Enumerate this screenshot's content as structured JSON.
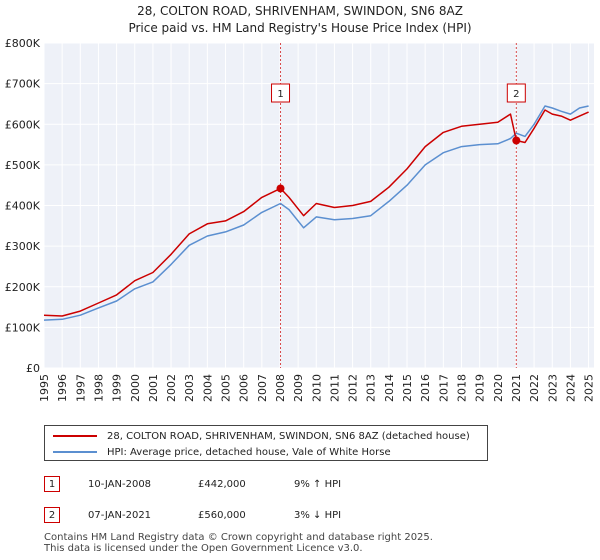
{
  "chart_data": {
    "type": "line",
    "title": "28, COLTON ROAD, SHRIVENHAM, SWINDON, SN6 8AZ",
    "subtitle": "Price paid vs. HM Land Registry's House Price Index (HPI)",
    "xlim": [
      1995,
      2025.3
    ],
    "ylim": [
      0,
      800000
    ],
    "x_ticks": [
      "1995",
      "1996",
      "1997",
      "1998",
      "1999",
      "2000",
      "2001",
      "2002",
      "2003",
      "2004",
      "2005",
      "2006",
      "2007",
      "2008",
      "2009",
      "2010",
      "2011",
      "2012",
      "2013",
      "2014",
      "2015",
      "2016",
      "2017",
      "2018",
      "2019",
      "2020",
      "2021",
      "2022",
      "2023",
      "2024",
      "2025"
    ],
    "y_ticks": [
      {
        "value": 0,
        "label": "£0"
      },
      {
        "value": 100000,
        "label": "£100K"
      },
      {
        "value": 200000,
        "label": "£200K"
      },
      {
        "value": 300000,
        "label": "£300K"
      },
      {
        "value": 400000,
        "label": "£400K"
      },
      {
        "value": 500000,
        "label": "£500K"
      },
      {
        "value": 600000,
        "label": "£600K"
      },
      {
        "value": 700000,
        "label": "£700K"
      },
      {
        "value": 800000,
        "label": "£800K"
      }
    ],
    "grid": true,
    "series": [
      {
        "name": "28, COLTON ROAD, SHRIVENHAM, SWINDON, SN6 8AZ (detached house)",
        "color": "#cc0000",
        "points": [
          [
            1995.0,
            130000
          ],
          [
            1996.0,
            128000
          ],
          [
            1997.0,
            140000
          ],
          [
            1998.0,
            160000
          ],
          [
            1999.0,
            180000
          ],
          [
            2000.0,
            215000
          ],
          [
            2001.0,
            235000
          ],
          [
            2002.0,
            280000
          ],
          [
            2003.0,
            330000
          ],
          [
            2004.0,
            355000
          ],
          [
            2005.0,
            362000
          ],
          [
            2006.0,
            385000
          ],
          [
            2007.0,
            420000
          ],
          [
            2008.03,
            442000
          ],
          [
            2008.5,
            420000
          ],
          [
            2009.3,
            375000
          ],
          [
            2010.0,
            405000
          ],
          [
            2011.0,
            395000
          ],
          [
            2012.0,
            400000
          ],
          [
            2013.0,
            410000
          ],
          [
            2014.0,
            445000
          ],
          [
            2015.0,
            490000
          ],
          [
            2016.0,
            545000
          ],
          [
            2017.0,
            580000
          ],
          [
            2018.0,
            595000
          ],
          [
            2019.0,
            600000
          ],
          [
            2020.0,
            605000
          ],
          [
            2020.7,
            625000
          ],
          [
            2021.02,
            560000
          ],
          [
            2021.5,
            555000
          ],
          [
            2022.0,
            590000
          ],
          [
            2022.6,
            635000
          ],
          [
            2023.0,
            625000
          ],
          [
            2023.5,
            620000
          ],
          [
            2024.0,
            610000
          ],
          [
            2024.5,
            620000
          ],
          [
            2025.0,
            630000
          ]
        ]
      },
      {
        "name": "HPI: Average price, detached house, Vale of White Horse",
        "color": "#5b8fd0",
        "points": [
          [
            1995.0,
            118000
          ],
          [
            1996.0,
            120000
          ],
          [
            1997.0,
            130000
          ],
          [
            1998.0,
            148000
          ],
          [
            1999.0,
            165000
          ],
          [
            2000.0,
            195000
          ],
          [
            2001.0,
            212000
          ],
          [
            2002.0,
            255000
          ],
          [
            2003.0,
            302000
          ],
          [
            2004.0,
            325000
          ],
          [
            2005.0,
            335000
          ],
          [
            2006.0,
            352000
          ],
          [
            2007.0,
            383000
          ],
          [
            2008.03,
            405000
          ],
          [
            2008.5,
            390000
          ],
          [
            2009.3,
            345000
          ],
          [
            2010.0,
            372000
          ],
          [
            2011.0,
            365000
          ],
          [
            2012.0,
            368000
          ],
          [
            2013.0,
            375000
          ],
          [
            2014.0,
            410000
          ],
          [
            2015.0,
            450000
          ],
          [
            2016.0,
            500000
          ],
          [
            2017.0,
            530000
          ],
          [
            2018.0,
            545000
          ],
          [
            2019.0,
            550000
          ],
          [
            2020.0,
            552000
          ],
          [
            2020.7,
            565000
          ],
          [
            2021.02,
            578000
          ],
          [
            2021.5,
            570000
          ],
          [
            2022.0,
            600000
          ],
          [
            2022.6,
            645000
          ],
          [
            2023.0,
            640000
          ],
          [
            2023.5,
            632000
          ],
          [
            2024.0,
            625000
          ],
          [
            2024.5,
            640000
          ],
          [
            2025.0,
            645000
          ]
        ]
      }
    ],
    "annotations": [
      {
        "label": "1",
        "x": 2008.03,
        "y": 442000,
        "color": "#cc0000"
      },
      {
        "label": "2",
        "x": 2021.02,
        "y": 560000,
        "color": "#cc0000"
      }
    ]
  },
  "legend": {
    "items": [
      {
        "label": "28, COLTON ROAD, SHRIVENHAM, SWINDON, SN6 8AZ (detached house)",
        "color": "#cc0000"
      },
      {
        "label": "HPI: Average price, detached house, Vale of White Horse",
        "color": "#5b8fd0"
      }
    ]
  },
  "sales": [
    {
      "num": "1",
      "date": "10-JAN-2008",
      "price": "£442,000",
      "hpi": "9% ↑ HPI"
    },
    {
      "num": "2",
      "date": "07-JAN-2021",
      "price": "£560,000",
      "hpi": "3% ↓ HPI"
    }
  ],
  "footer": {
    "line1": "Contains HM Land Registry data © Crown copyright and database right 2025.",
    "line2": "This data is licensed under the Open Government Licence v3.0."
  }
}
